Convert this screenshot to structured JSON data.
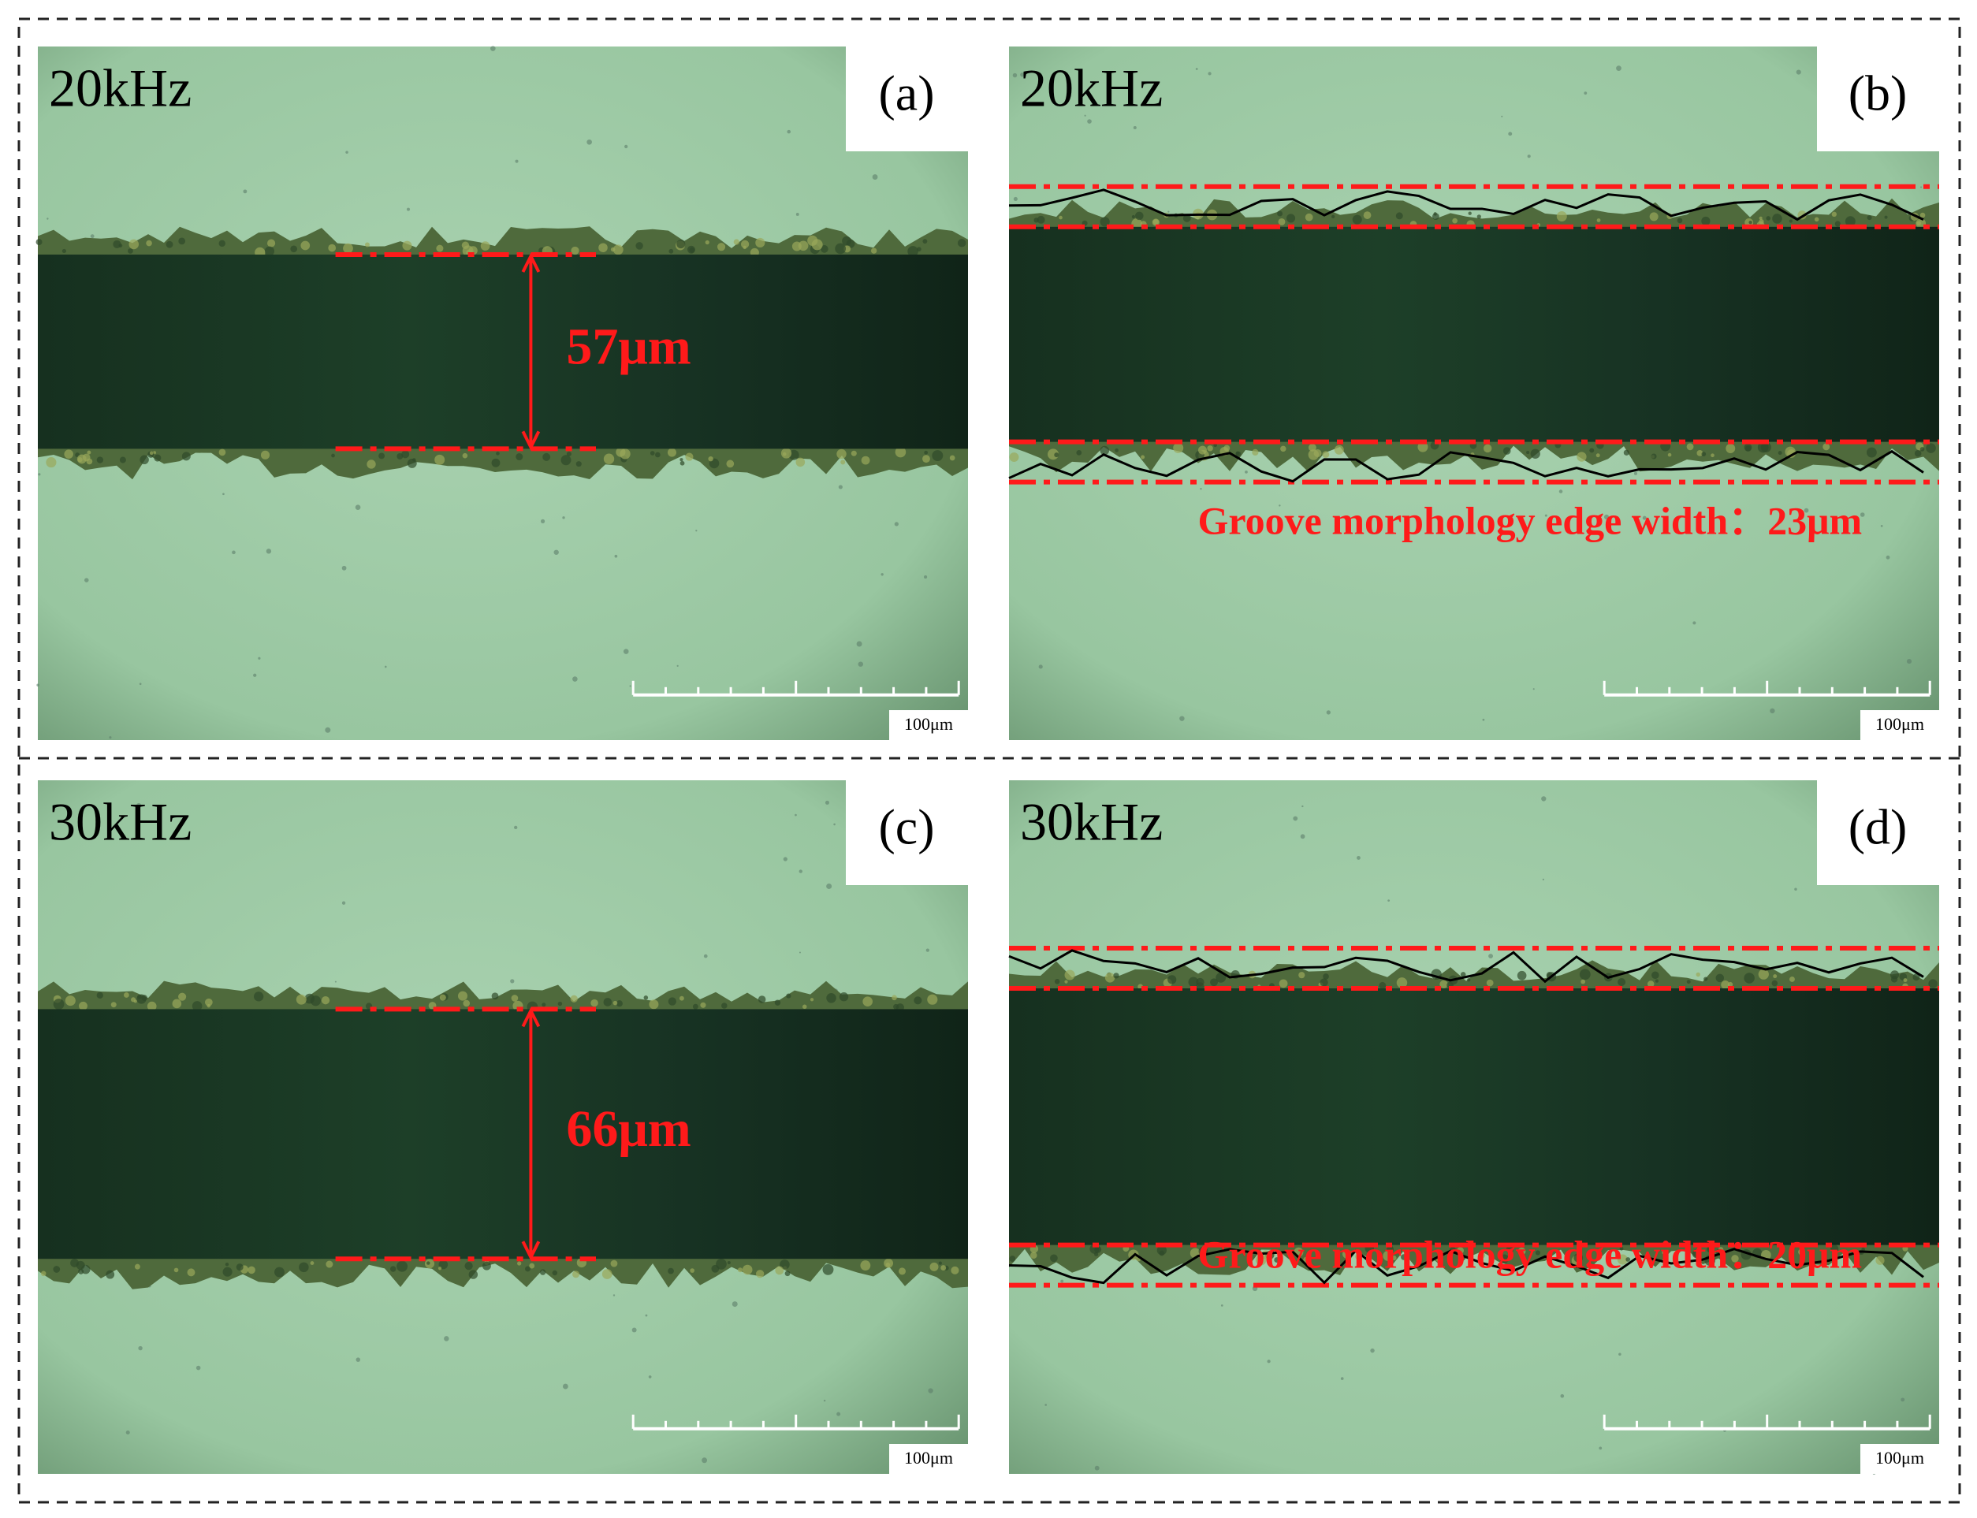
{
  "panels": [
    {
      "frequency": "20kHz",
      "label": "(a)",
      "measurement": "57μm",
      "scale_bar": "100μm"
    },
    {
      "frequency": "20kHz",
      "label": "(b)",
      "annotation": "Groove morphology edge width：23μm",
      "scale_bar": "100μm"
    },
    {
      "frequency": "30kHz",
      "label": "(c)",
      "measurement": "66μm",
      "scale_bar": "100μm"
    },
    {
      "frequency": "30kHz",
      "label": "(d)",
      "annotation": "Groove morphology edge width：20μm",
      "scale_bar": "100μm"
    }
  ]
}
